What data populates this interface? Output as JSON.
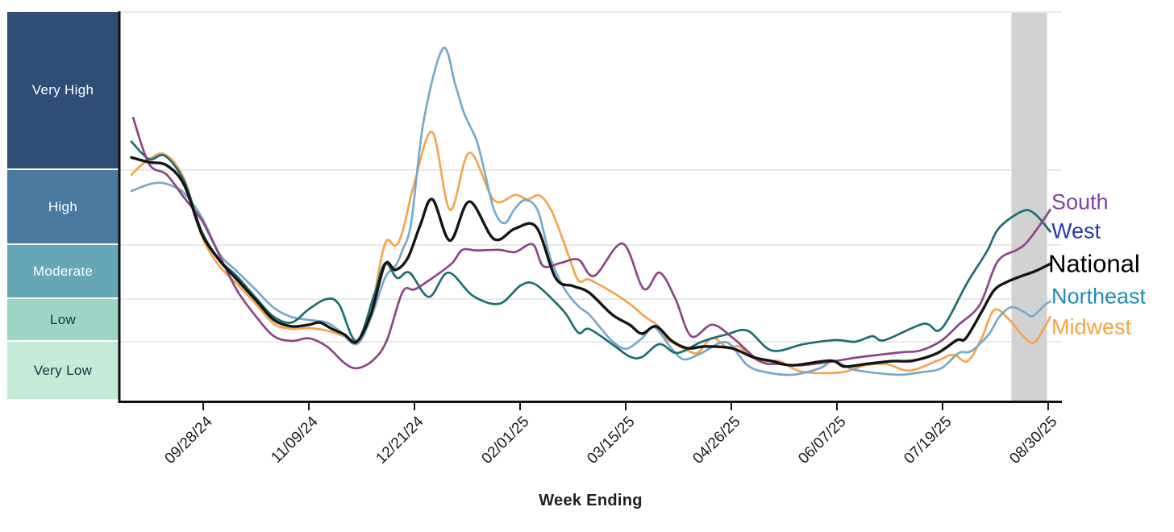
{
  "chart_data": {
    "type": "line",
    "title": "",
    "xlabel": "Week Ending",
    "x_axis": {
      "tick_labels": [
        "09/28/24",
        "11/09/24",
        "12/21/24",
        "02/01/25",
        "03/15/25",
        "04/26/25",
        "06/07/25",
        "07/19/25",
        "08/30/25"
      ],
      "tick_weeks": [
        4.08,
        10.08,
        16.08,
        22.08,
        28.08,
        34.08,
        40.08,
        46.08,
        52.08
      ],
      "unit": "weeks since first plotted week (weekly wastewater data, 08/31/24 to 08/30/25)"
    },
    "y_axis": {
      "scale_note": "band units: 0 = x-axis, 1 = Low threshold, 2 = Moderate threshold, 3 = High threshold, 4 = Very High threshold, 5 = top of chart",
      "grid": true,
      "band_edges_frac": [
        0,
        0.151,
        0.261,
        0.4,
        0.593,
        1.0
      ]
    },
    "y_bands": [
      {
        "label": "Very Low",
        "color": "#c5ead8",
        "text_color": "#17323c",
        "span": [
          0,
          1
        ]
      },
      {
        "label": "Low",
        "color": "#9cd4c5",
        "text_color": "#17323c",
        "span": [
          1,
          2
        ]
      },
      {
        "label": "Moderate",
        "color": "#65a7b5",
        "text_color": "#ffffff",
        "span": [
          2,
          3
        ]
      },
      {
        "label": "High",
        "color": "#4a7aa0",
        "text_color": "#ffffff",
        "span": [
          3,
          4
        ]
      },
      {
        "label": "Very High",
        "color": "#2f4d77",
        "text_color": "#ffffff",
        "span": [
          4,
          5
        ]
      }
    ],
    "provisional_band": {
      "week_span": [
        50.0,
        52.2
      ],
      "color": "#d2d2d2"
    },
    "grid_color": "#dcdcdc",
    "axis_color": "#111111",
    "legend_position": "right-end-labels",
    "series": [
      {
        "name": "South",
        "line_color": "#8b4687",
        "label_color": "#8041a5",
        "label_v": 3.57,
        "points": [
          [
            0.1,
            4.33
          ],
          [
            1,
            4.04
          ],
          [
            2,
            3.94
          ],
          [
            3,
            3.63
          ],
          [
            4,
            3.33
          ],
          [
            5,
            2.81
          ],
          [
            6,
            2.16
          ],
          [
            7.1,
            1.58
          ],
          [
            8.1,
            1.13
          ],
          [
            9.1,
            1.02
          ],
          [
            10.1,
            1.08
          ],
          [
            11.1,
            0.92
          ],
          [
            12.1,
            0.64
          ],
          [
            12.8,
            0.55
          ],
          [
            13.7,
            0.68
          ],
          [
            14.5,
            1.02
          ],
          [
            15.4,
            2.13
          ],
          [
            16.1,
            2.18
          ],
          [
            17.1,
            2.39
          ],
          [
            18.2,
            2.66
          ],
          [
            18.8,
            2.91
          ],
          [
            19.6,
            2.9
          ],
          [
            20.9,
            2.91
          ],
          [
            21.8,
            2.87
          ],
          [
            22.8,
            3.01
          ],
          [
            23.4,
            2.61
          ],
          [
            24.4,
            2.67
          ],
          [
            25.4,
            2.73
          ],
          [
            26.3,
            2.43
          ],
          [
            27.9,
            3.02
          ],
          [
            29.1,
            2.19
          ],
          [
            30,
            2.49
          ],
          [
            30.9,
            2.01
          ],
          [
            31.8,
            1.13
          ],
          [
            33,
            1.4
          ],
          [
            34.2,
            1.08
          ],
          [
            35.7,
            0.67
          ],
          [
            36.8,
            0.62
          ],
          [
            38,
            0.6
          ],
          [
            39.9,
            0.67
          ],
          [
            41.4,
            0.74
          ],
          [
            43.7,
            0.82
          ],
          [
            44.8,
            0.85
          ],
          [
            46,
            1.02
          ],
          [
            47,
            1.4
          ],
          [
            48.2,
            1.87
          ],
          [
            49.2,
            2.69
          ],
          [
            50.3,
            2.91
          ],
          [
            50.8,
            3.02
          ],
          [
            51.5,
            3.23
          ],
          [
            52.2,
            3.47
          ]
        ]
      },
      {
        "name": "West",
        "line_color": "#1d6d6f",
        "label_color": "#2438ad",
        "label_v": 3.18,
        "points": [
          [
            0,
            4.18
          ],
          [
            1,
            4.07
          ],
          [
            1.9,
            4.09
          ],
          [
            3,
            3.85
          ],
          [
            4,
            3.18
          ],
          [
            5,
            2.73
          ],
          [
            6,
            2.42
          ],
          [
            7.1,
            2.01
          ],
          [
            8.1,
            1.58
          ],
          [
            9.1,
            1.45
          ],
          [
            10.1,
            1.77
          ],
          [
            11.1,
            2.0
          ],
          [
            11.8,
            1.87
          ],
          [
            12.8,
            1.02
          ],
          [
            13.8,
            2.09
          ],
          [
            14.4,
            2.66
          ],
          [
            15.1,
            2.39
          ],
          [
            15.8,
            2.49
          ],
          [
            16.9,
            2.04
          ],
          [
            18,
            2.49
          ],
          [
            19.4,
            2.06
          ],
          [
            20.9,
            1.89
          ],
          [
            22.1,
            2.25
          ],
          [
            22.9,
            2.28
          ],
          [
            24,
            1.96
          ],
          [
            24.7,
            1.64
          ],
          [
            25.4,
            1.21
          ],
          [
            26,
            1.3
          ],
          [
            27.3,
            0.96
          ],
          [
            28.3,
            0.75
          ],
          [
            29,
            0.74
          ],
          [
            30,
            0.96
          ],
          [
            31,
            0.81
          ],
          [
            32.4,
            1.0
          ],
          [
            33.8,
            1.17
          ],
          [
            35,
            1.26
          ],
          [
            36.4,
            0.85
          ],
          [
            38.2,
            0.96
          ],
          [
            40,
            1.04
          ],
          [
            41.1,
            1.0
          ],
          [
            42.1,
            1.13
          ],
          [
            42.8,
            1.04
          ],
          [
            45,
            1.42
          ],
          [
            46,
            1.3
          ],
          [
            47.5,
            2.31
          ],
          [
            48.6,
            2.88
          ],
          [
            49.3,
            3.23
          ],
          [
            50.6,
            3.45
          ],
          [
            51.3,
            3.42
          ],
          [
            52.2,
            3.18
          ]
        ]
      },
      {
        "name": "National",
        "line_color": "#151515",
        "label_color": "#000000",
        "label_v": 2.65,
        "emphasis": true,
        "points": [
          [
            0,
            4.08
          ],
          [
            1,
            4.05
          ],
          [
            2,
            4.03
          ],
          [
            3,
            3.8
          ],
          [
            4,
            3.15
          ],
          [
            5,
            2.72
          ],
          [
            6,
            2.36
          ],
          [
            7.1,
            1.96
          ],
          [
            8.1,
            1.51
          ],
          [
            9.1,
            1.36
          ],
          [
            10.1,
            1.4
          ],
          [
            10.7,
            1.45
          ],
          [
            11.4,
            1.3
          ],
          [
            12.1,
            1.17
          ],
          [
            12.8,
            1.0
          ],
          [
            13.6,
            1.64
          ],
          [
            14.4,
            2.64
          ],
          [
            15,
            2.54
          ],
          [
            15.7,
            2.76
          ],
          [
            16.4,
            3.26
          ],
          [
            17.1,
            3.61
          ],
          [
            18.1,
            3.06
          ],
          [
            19.2,
            3.58
          ],
          [
            20.6,
            3.08
          ],
          [
            21.8,
            3.22
          ],
          [
            23,
            3.24
          ],
          [
            24.1,
            2.39
          ],
          [
            25.1,
            2.24
          ],
          [
            26,
            2.12
          ],
          [
            27.3,
            1.64
          ],
          [
            28.3,
            1.4
          ],
          [
            29,
            1.19
          ],
          [
            29.8,
            1.36
          ],
          [
            30.7,
            1.02
          ],
          [
            31.6,
            0.89
          ],
          [
            32.6,
            0.92
          ],
          [
            34.1,
            0.89
          ],
          [
            35.3,
            0.74
          ],
          [
            36.4,
            0.67
          ],
          [
            37.6,
            0.6
          ],
          [
            39.7,
            0.68
          ],
          [
            40.5,
            0.58
          ],
          [
            41.7,
            0.62
          ],
          [
            43.2,
            0.67
          ],
          [
            44.4,
            0.68
          ],
          [
            45.8,
            0.81
          ],
          [
            46.9,
            1.04
          ],
          [
            47.4,
            1.08
          ],
          [
            48.3,
            1.7
          ],
          [
            49,
            2.16
          ],
          [
            49.7,
            2.31
          ],
          [
            50.6,
            2.43
          ],
          [
            51.3,
            2.51
          ],
          [
            52.2,
            2.65
          ]
        ]
      },
      {
        "name": "Northeast",
        "line_color": "#77a9ca",
        "label_color": "#1f8cb4",
        "label_v": 2.04,
        "points": [
          [
            0,
            3.72
          ],
          [
            1,
            3.81
          ],
          [
            1.7,
            3.83
          ],
          [
            2.4,
            3.78
          ],
          [
            3,
            3.69
          ],
          [
            4,
            3.37
          ],
          [
            5,
            2.84
          ],
          [
            6,
            2.51
          ],
          [
            7.1,
            2.16
          ],
          [
            8.1,
            1.79
          ],
          [
            9.1,
            1.58
          ],
          [
            10.1,
            1.51
          ],
          [
            11.1,
            1.45
          ],
          [
            11.8,
            1.26
          ],
          [
            12.8,
            0.96
          ],
          [
            13.6,
            1.55
          ],
          [
            14.4,
            2.39
          ],
          [
            15,
            2.61
          ],
          [
            15.4,
            2.91
          ],
          [
            15.9,
            3.31
          ],
          [
            16.6,
            4.31
          ],
          [
            17.7,
            4.77
          ],
          [
            18.4,
            4.54
          ],
          [
            18.9,
            4.36
          ],
          [
            19.6,
            4.19
          ],
          [
            20,
            4.02
          ],
          [
            20.6,
            3.47
          ],
          [
            21.2,
            3.29
          ],
          [
            21.8,
            3.49
          ],
          [
            22.4,
            3.6
          ],
          [
            23.1,
            3.45
          ],
          [
            23.8,
            2.76
          ],
          [
            24.6,
            2.19
          ],
          [
            25.4,
            1.83
          ],
          [
            26,
            1.64
          ],
          [
            26.7,
            1.3
          ],
          [
            27.3,
            1.02
          ],
          [
            28.1,
            0.88
          ],
          [
            29,
            1.08
          ],
          [
            29.7,
            1.34
          ],
          [
            30.7,
            0.88
          ],
          [
            31.4,
            0.7
          ],
          [
            32.4,
            0.81
          ],
          [
            33.8,
            0.99
          ],
          [
            35,
            0.6
          ],
          [
            36.1,
            0.48
          ],
          [
            37.6,
            0.44
          ],
          [
            39.1,
            0.55
          ],
          [
            39.9,
            0.67
          ],
          [
            41,
            0.53
          ],
          [
            42.3,
            0.47
          ],
          [
            43.7,
            0.44
          ],
          [
            44.8,
            0.48
          ],
          [
            46,
            0.55
          ],
          [
            47,
            0.81
          ],
          [
            47.7,
            0.84
          ],
          [
            48.7,
            1.17
          ],
          [
            49.3,
            1.58
          ],
          [
            50,
            1.81
          ],
          [
            50.7,
            1.7
          ],
          [
            51.2,
            1.6
          ],
          [
            51.9,
            1.87
          ],
          [
            52.2,
            1.94
          ]
        ]
      },
      {
        "name": "Midwest",
        "line_color": "#f4a44c",
        "label_color": "#f9a43c",
        "label_v": 1.34,
        "points": [
          [
            0,
            3.94
          ],
          [
            0.9,
            4.06
          ],
          [
            1.9,
            4.1
          ],
          [
            3,
            3.88
          ],
          [
            4,
            3.12
          ],
          [
            5,
            2.61
          ],
          [
            6,
            2.28
          ],
          [
            7.1,
            1.87
          ],
          [
            8.1,
            1.42
          ],
          [
            9.1,
            1.3
          ],
          [
            10.1,
            1.32
          ],
          [
            11.1,
            1.26
          ],
          [
            12.1,
            1.13
          ],
          [
            12.9,
            1.02
          ],
          [
            13.6,
            1.64
          ],
          [
            14.1,
            2.61
          ],
          [
            14.5,
            3.06
          ],
          [
            15,
            2.99
          ],
          [
            15.4,
            3.18
          ],
          [
            16.1,
            3.85
          ],
          [
            17.1,
            4.24
          ],
          [
            18.1,
            3.47
          ],
          [
            19.2,
            4.11
          ],
          [
            20.6,
            3.6
          ],
          [
            21.8,
            3.67
          ],
          [
            22.5,
            3.61
          ],
          [
            23.2,
            3.66
          ],
          [
            23.9,
            3.44
          ],
          [
            24.8,
            2.84
          ],
          [
            25.4,
            2.34
          ],
          [
            26,
            2.36
          ],
          [
            27.3,
            2.13
          ],
          [
            28.3,
            1.89
          ],
          [
            29.2,
            1.58
          ],
          [
            29.9,
            1.38
          ],
          [
            30.4,
            1.08
          ],
          [
            31.6,
            0.85
          ],
          [
            32.2,
            0.82
          ],
          [
            33,
            1.09
          ],
          [
            33.9,
            0.89
          ],
          [
            34.5,
            0.92
          ],
          [
            35.6,
            0.68
          ],
          [
            36.8,
            0.67
          ],
          [
            38.1,
            0.49
          ],
          [
            40.3,
            0.48
          ],
          [
            41.7,
            0.6
          ],
          [
            42.9,
            0.62
          ],
          [
            44.2,
            0.51
          ],
          [
            45.8,
            0.68
          ],
          [
            46.7,
            0.78
          ],
          [
            47.5,
            0.67
          ],
          [
            48.3,
            1.08
          ],
          [
            49,
            1.74
          ],
          [
            49.8,
            1.55
          ],
          [
            50.7,
            1.11
          ],
          [
            51.3,
            0.99
          ],
          [
            51.9,
            1.36
          ],
          [
            52.2,
            1.58
          ]
        ]
      }
    ]
  }
}
